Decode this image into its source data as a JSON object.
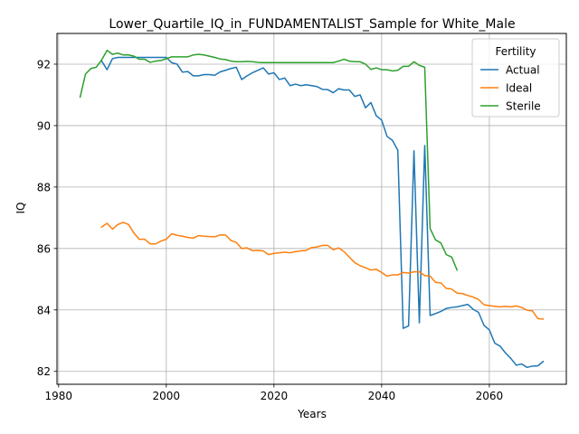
{
  "chart_data": {
    "type": "line",
    "title": "Lower_Quartile_IQ_in_FUNDAMENTALIST_Sample for White_Male",
    "xlabel": "Years",
    "ylabel": "IQ",
    "xlim": [
      1979.7,
      2074.3
    ],
    "ylim": [
      81.58,
      93.0
    ],
    "xticks": [
      1980,
      2000,
      2020,
      2040,
      2060
    ],
    "yticks": [
      82,
      84,
      86,
      88,
      90,
      92
    ],
    "grid": true,
    "legend": {
      "title": "Fertility",
      "placement": "top-right"
    },
    "series": [
      {
        "name": "Actual",
        "color": "#1f77b4",
        "points": [
          [
            1988,
            92.1
          ],
          [
            1989,
            91.82
          ],
          [
            1990,
            92.18
          ],
          [
            1991,
            92.22
          ],
          [
            1992,
            92.22
          ],
          [
            1993,
            92.22
          ],
          [
            1994,
            92.22
          ],
          [
            1995,
            92.22
          ],
          [
            1996,
            92.22
          ],
          [
            1997,
            92.22
          ],
          [
            1998,
            92.22
          ],
          [
            1999,
            92.22
          ],
          [
            2000,
            92.22
          ],
          [
            2001,
            92.05
          ],
          [
            2002,
            92.0
          ],
          [
            2003,
            91.74
          ],
          [
            2004,
            91.76
          ],
          [
            2005,
            91.62
          ],
          [
            2006,
            91.62
          ],
          [
            2007,
            91.66
          ],
          [
            2008,
            91.66
          ],
          [
            2009,
            91.64
          ],
          [
            2010,
            91.75
          ],
          [
            2011,
            91.8
          ],
          [
            2012,
            91.86
          ],
          [
            2013,
            91.9
          ],
          [
            2014,
            91.5
          ],
          [
            2015,
            91.62
          ],
          [
            2016,
            91.72
          ],
          [
            2017,
            91.8
          ],
          [
            2018,
            91.88
          ],
          [
            2019,
            91.68
          ],
          [
            2020,
            91.72
          ],
          [
            2021,
            91.5
          ],
          [
            2022,
            91.55
          ],
          [
            2023,
            91.3
          ],
          [
            2024,
            91.35
          ],
          [
            2025,
            91.3
          ],
          [
            2026,
            91.33
          ],
          [
            2027,
            91.3
          ],
          [
            2028,
            91.27
          ],
          [
            2029,
            91.18
          ],
          [
            2030,
            91.17
          ],
          [
            2031,
            91.07
          ],
          [
            2032,
            91.2
          ],
          [
            2033,
            91.16
          ],
          [
            2034,
            91.16
          ],
          [
            2035,
            90.95
          ],
          [
            2036,
            91.0
          ],
          [
            2037,
            90.58
          ],
          [
            2038,
            90.75
          ],
          [
            2039,
            90.32
          ],
          [
            2040,
            90.18
          ],
          [
            2041,
            89.65
          ],
          [
            2042,
            89.52
          ],
          [
            2043,
            89.2
          ],
          [
            2044,
            83.4
          ],
          [
            2045,
            83.48
          ],
          [
            2046,
            89.18
          ],
          [
            2047,
            83.58
          ],
          [
            2048,
            89.35
          ],
          [
            2049,
            83.82
          ],
          [
            2050,
            83.88
          ],
          [
            2051,
            83.95
          ],
          [
            2052,
            84.05
          ],
          [
            2053,
            84.08
          ],
          [
            2054,
            84.1
          ],
          [
            2055,
            84.14
          ],
          [
            2056,
            84.18
          ],
          [
            2057,
            84.02
          ],
          [
            2058,
            83.92
          ],
          [
            2059,
            83.5
          ],
          [
            2060,
            83.35
          ],
          [
            2061,
            82.92
          ],
          [
            2062,
            82.82
          ],
          [
            2063,
            82.6
          ],
          [
            2064,
            82.42
          ],
          [
            2065,
            82.2
          ],
          [
            2066,
            82.24
          ],
          [
            2067,
            82.13
          ],
          [
            2068,
            82.17
          ],
          [
            2069,
            82.18
          ],
          [
            2070,
            82.32
          ]
        ]
      },
      {
        "name": "Ideal",
        "color": "#ff7f0e",
        "points": [
          [
            1988,
            86.7
          ],
          [
            1989,
            86.82
          ],
          [
            1990,
            86.63
          ],
          [
            1991,
            86.78
          ],
          [
            1992,
            86.85
          ],
          [
            1993,
            86.78
          ],
          [
            1994,
            86.5
          ],
          [
            1995,
            86.3
          ],
          [
            1996,
            86.3
          ],
          [
            1997,
            86.15
          ],
          [
            1998,
            86.15
          ],
          [
            1999,
            86.24
          ],
          [
            2000,
            86.3
          ],
          [
            2001,
            86.48
          ],
          [
            2002,
            86.43
          ],
          [
            2003,
            86.4
          ],
          [
            2004,
            86.36
          ],
          [
            2005,
            86.34
          ],
          [
            2006,
            86.42
          ],
          [
            2007,
            86.4
          ],
          [
            2008,
            86.39
          ],
          [
            2009,
            86.38
          ],
          [
            2010,
            86.44
          ],
          [
            2011,
            86.44
          ],
          [
            2012,
            86.26
          ],
          [
            2013,
            86.2
          ],
          [
            2014,
            86.0
          ],
          [
            2015,
            86.02
          ],
          [
            2016,
            85.93
          ],
          [
            2017,
            85.94
          ],
          [
            2018,
            85.92
          ],
          [
            2019,
            85.8
          ],
          [
            2020,
            85.84
          ],
          [
            2021,
            85.86
          ],
          [
            2022,
            85.88
          ],
          [
            2023,
            85.86
          ],
          [
            2024,
            85.9
          ],
          [
            2025,
            85.92
          ],
          [
            2026,
            85.94
          ],
          [
            2027,
            86.03
          ],
          [
            2028,
            86.05
          ],
          [
            2029,
            86.1
          ],
          [
            2030,
            86.1
          ],
          [
            2031,
            85.96
          ],
          [
            2032,
            86.02
          ],
          [
            2033,
            85.9
          ],
          [
            2034,
            85.72
          ],
          [
            2035,
            85.54
          ],
          [
            2036,
            85.44
          ],
          [
            2037,
            85.37
          ],
          [
            2038,
            85.3
          ],
          [
            2039,
            85.32
          ],
          [
            2040,
            85.22
          ],
          [
            2041,
            85.1
          ],
          [
            2042,
            85.14
          ],
          [
            2043,
            85.14
          ],
          [
            2044,
            85.22
          ],
          [
            2045,
            85.2
          ],
          [
            2046,
            85.24
          ],
          [
            2047,
            85.24
          ],
          [
            2048,
            85.12
          ],
          [
            2049,
            85.1
          ],
          [
            2050,
            84.9
          ],
          [
            2051,
            84.88
          ],
          [
            2052,
            84.7
          ],
          [
            2053,
            84.68
          ],
          [
            2054,
            84.55
          ],
          [
            2055,
            84.53
          ],
          [
            2056,
            84.47
          ],
          [
            2057,
            84.42
          ],
          [
            2058,
            84.34
          ],
          [
            2059,
            84.17
          ],
          [
            2060,
            84.14
          ],
          [
            2061,
            84.12
          ],
          [
            2062,
            84.1
          ],
          [
            2063,
            84.12
          ],
          [
            2064,
            84.1
          ],
          [
            2065,
            84.13
          ],
          [
            2066,
            84.08
          ],
          [
            2067,
            83.99
          ],
          [
            2068,
            83.97
          ],
          [
            2069,
            83.72
          ],
          [
            2070,
            83.7
          ]
        ]
      },
      {
        "name": "Sterile",
        "color": "#2ca02c",
        "points": [
          [
            1984,
            90.93
          ],
          [
            1985,
            91.68
          ],
          [
            1986,
            91.86
          ],
          [
            1987,
            91.9
          ],
          [
            1988,
            92.14
          ],
          [
            1989,
            92.45
          ],
          [
            1990,
            92.32
          ],
          [
            1991,
            92.36
          ],
          [
            1992,
            92.3
          ],
          [
            1993,
            92.3
          ],
          [
            1994,
            92.26
          ],
          [
            1995,
            92.16
          ],
          [
            1996,
            92.16
          ],
          [
            1997,
            92.06
          ],
          [
            1998,
            92.1
          ],
          [
            1999,
            92.12
          ],
          [
            2000,
            92.18
          ],
          [
            2001,
            92.24
          ],
          [
            2002,
            92.24
          ],
          [
            2003,
            92.24
          ],
          [
            2004,
            92.24
          ],
          [
            2005,
            92.3
          ],
          [
            2006,
            92.32
          ],
          [
            2007,
            92.3
          ],
          [
            2008,
            92.26
          ],
          [
            2009,
            92.22
          ],
          [
            2010,
            92.17
          ],
          [
            2011,
            92.15
          ],
          [
            2012,
            92.1
          ],
          [
            2013,
            92.08
          ],
          [
            2014,
            92.08
          ],
          [
            2015,
            92.09
          ],
          [
            2016,
            92.08
          ],
          [
            2017,
            92.06
          ],
          [
            2018,
            92.05
          ],
          [
            2019,
            92.05
          ],
          [
            2020,
            92.05
          ],
          [
            2021,
            92.05
          ],
          [
            2022,
            92.05
          ],
          [
            2023,
            92.05
          ],
          [
            2024,
            92.05
          ],
          [
            2025,
            92.05
          ],
          [
            2026,
            92.05
          ],
          [
            2027,
            92.05
          ],
          [
            2028,
            92.05
          ],
          [
            2029,
            92.05
          ],
          [
            2030,
            92.05
          ],
          [
            2031,
            92.05
          ],
          [
            2032,
            92.1
          ],
          [
            2033,
            92.16
          ],
          [
            2034,
            92.1
          ],
          [
            2035,
            92.08
          ],
          [
            2036,
            92.08
          ],
          [
            2037,
            92.0
          ],
          [
            2038,
            91.83
          ],
          [
            2039,
            91.88
          ],
          [
            2040,
            91.82
          ],
          [
            2041,
            91.82
          ],
          [
            2042,
            91.78
          ],
          [
            2043,
            91.8
          ],
          [
            2044,
            91.93
          ],
          [
            2045,
            91.93
          ],
          [
            2046,
            92.08
          ],
          [
            2047,
            91.96
          ],
          [
            2048,
            91.9
          ],
          [
            2049,
            86.65
          ],
          [
            2050,
            86.28
          ],
          [
            2051,
            86.18
          ],
          [
            2052,
            85.8
          ],
          [
            2053,
            85.72
          ],
          [
            2054,
            85.3
          ]
        ]
      }
    ]
  }
}
